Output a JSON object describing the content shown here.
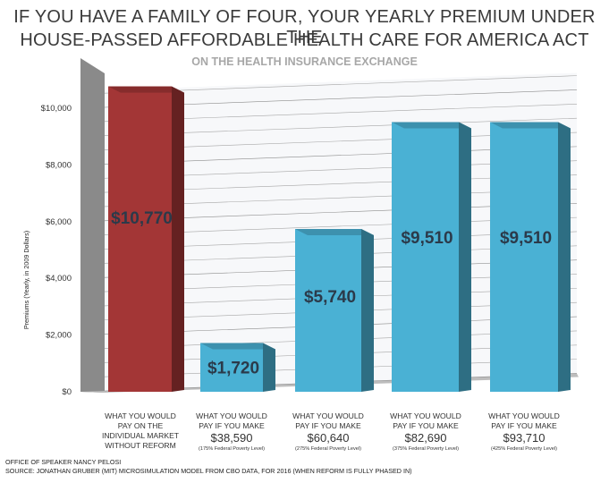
{
  "chart_data": {
    "type": "bar",
    "title_line1": "IF YOU HAVE A FAMILY OF FOUR, YOUR YEARLY PREMIUM UNDER THE",
    "title_line2": "HOUSE-PASSED AFFORDABLE HEALTH CARE FOR AMERICA ACT",
    "subtitle": "ON THE HEALTH INSURANCE EXCHANGE",
    "ylabel": "Premiums (Yearly, in 2009 Dollars)",
    "ylim": [
      0,
      10000
    ],
    "yticks": [
      "$0",
      "$2,000",
      "$4,000",
      "$6,000",
      "$8,000",
      "$10,000"
    ],
    "grid": true,
    "categories": [
      {
        "lines": [
          "WHAT YOU WOULD",
          "PAY ON THE",
          "INDIVIDUAL MARKET",
          "WITHOUT REFORM"
        ],
        "amount": "",
        "fpl": ""
      },
      {
        "lines": [
          "WHAT YOU WOULD",
          "PAY IF YOU MAKE"
        ],
        "amount": "$38,590",
        "fpl": "(175% Federal Poverty Level)"
      },
      {
        "lines": [
          "WHAT YOU WOULD",
          "PAY IF YOU MAKE"
        ],
        "amount": "$60,640",
        "fpl": "(275% Federal Poverty Level)"
      },
      {
        "lines": [
          "WHAT YOU WOULD",
          "PAY IF YOU MAKE"
        ],
        "amount": "$82,690",
        "fpl": "(375% Federal Poverty Level)"
      },
      {
        "lines": [
          "WHAT YOU WOULD",
          "PAY IF YOU MAKE"
        ],
        "amount": "$93,710",
        "fpl": "(425% Federal Poverty Level)"
      }
    ],
    "values": [
      10770,
      1720,
      5740,
      9510,
      9510
    ],
    "value_labels": [
      "$10,770",
      "$1,720",
      "$5,740",
      "$9,510",
      "$9,510"
    ],
    "colors": {
      "reform_absent": "#a33636",
      "reform": "#4ab1d4"
    },
    "bar_colors": [
      "reform_absent",
      "reform",
      "reform",
      "reform",
      "reform"
    ]
  },
  "footer": {
    "line1": "OFFICE OF SPEAKER NANCY PELOSI",
    "line2": "SOURCE: JONATHAN GRUBER (MIT) MICROSIMULATION MODEL FROM CBO DATA, FOR 2016 (WHEN REFORM IS FULLY PHASED IN)"
  }
}
